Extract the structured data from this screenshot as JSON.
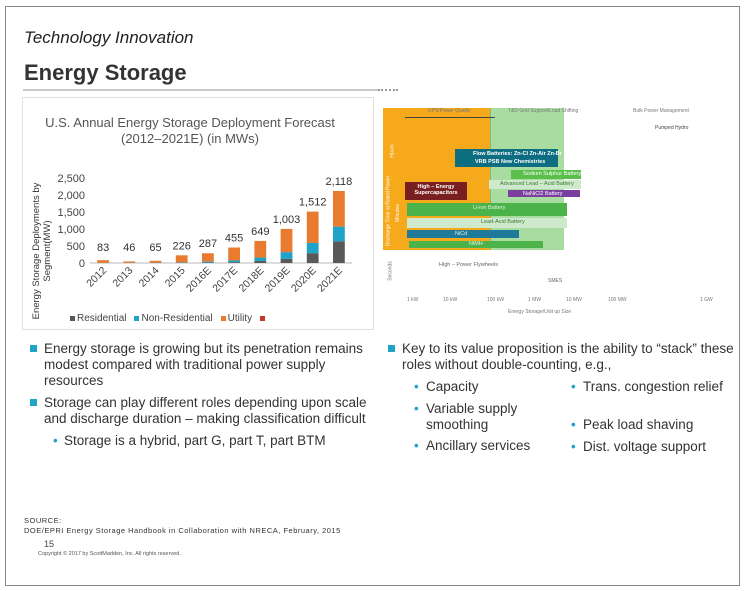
{
  "slide": {
    "section": "Technology Innovation",
    "title": "Energy Storage",
    "page_number": "15",
    "copyright": "Copyright © 2017 by ScottMadden, Inc. All rights reserved.",
    "source_label": "SOURCE:",
    "source_text": "DOE/EPRI Energy Storage Handbook in Collaboration with NRECA, February, 2015"
  },
  "chart_data": {
    "type": "bar",
    "stacked": true,
    "title": "U.S. Annual Energy Storage Deployment Forecast (2012–2021E) (in MWs)",
    "ylabel": "Energy Storage Deployments by Segment(MW)",
    "xlabel": "",
    "ylim": [
      0,
      2500
    ],
    "yticks": [
      "0",
      "500",
      "1,000",
      "1,500",
      "2,000",
      "2,500"
    ],
    "categories": [
      "2012",
      "2013",
      "2014",
      "2015",
      "2016E",
      "2017E",
      "2018E",
      "2019E",
      "2020E",
      "2021E"
    ],
    "totals_labels": [
      "83",
      "46",
      "65",
      "226",
      "287",
      "455",
      "649",
      "1,003",
      "1,512",
      "2,118"
    ],
    "series": [
      {
        "name": "Residential",
        "color": "#595959",
        "values": [
          0,
          0,
          0,
          2,
          10,
          25,
          60,
          120,
          290,
          640
        ]
      },
      {
        "name": "Non-Residential",
        "color": "#1fa3c9",
        "values": [
          5,
          6,
          10,
          14,
          30,
          50,
          100,
          200,
          300,
          430
        ]
      },
      {
        "name": "Utility",
        "color": "#e87b2f",
        "values": [
          78,
          40,
          55,
          210,
          247,
          380,
          489,
          683,
          922,
          1048
        ]
      },
      {
        "name": "",
        "color": "#c0392b",
        "values": [
          0,
          0,
          0,
          0,
          0,
          0,
          0,
          0,
          0,
          0
        ]
      }
    ],
    "legend": [
      "Residential",
      "Non-Residential",
      "Utility",
      ""
    ]
  },
  "diagram": {
    "top_labels": [
      "UPS/Power Quality",
      "T&D Grid Support/Load Shifting",
      "Bulk Power Management"
    ],
    "pumped_hydro": "Pumped Hydro",
    "y_labels": [
      "Hours",
      "Discharge Time at Rated Power",
      "Minutes",
      "Seconds"
    ],
    "x_ticks": [
      "1 kW",
      "10 kW",
      "100 kW",
      "1 MW",
      "10 MW",
      "100 MW",
      "1 GW"
    ],
    "x_axis_title": "Energy Storage/Unit up Size",
    "smes": "SMES",
    "flywheels": "High – Power Flywheels",
    "techs": {
      "flow": "Flow Batteries: Zn-Cl  Zn-Air  Zn-Br",
      "flow2": "VRB    PSB    New Chemistries",
      "sodium": "Sodium Sulphur Battery",
      "adv_lead": "Advanced Lead – Acid Battery",
      "nimh": "NaNiCl2 Battery",
      "caps": "High – Energy Supercapacitors",
      "li_ion": "Li-ion Battery",
      "lead_acid": "Lead-Acid Battery",
      "nicd": "NiCd",
      "nimh2": "NiMH"
    },
    "colors": {
      "ups": "#f5a91b",
      "td": "#a8dca0",
      "bulk": "#e9e9e9"
    }
  },
  "bullets_left": {
    "items": [
      "Energy storage is growing but its penetration remains modest compared with traditional power supply resources",
      "Storage can play different roles depending upon scale and discharge duration – making classification difficult"
    ],
    "sub": "Storage is a hybrid, part G, part T, part BTM"
  },
  "bullets_right": {
    "lead": "Key to its value proposition is the ability to “stack” these roles without double-counting, e.g.,",
    "col1": [
      "Capacity",
      "Variable supply smoothing",
      "Ancillary services"
    ],
    "col2": [
      "Trans. congestion relief",
      "Peak load shaving",
      "Dist. voltage support"
    ]
  }
}
